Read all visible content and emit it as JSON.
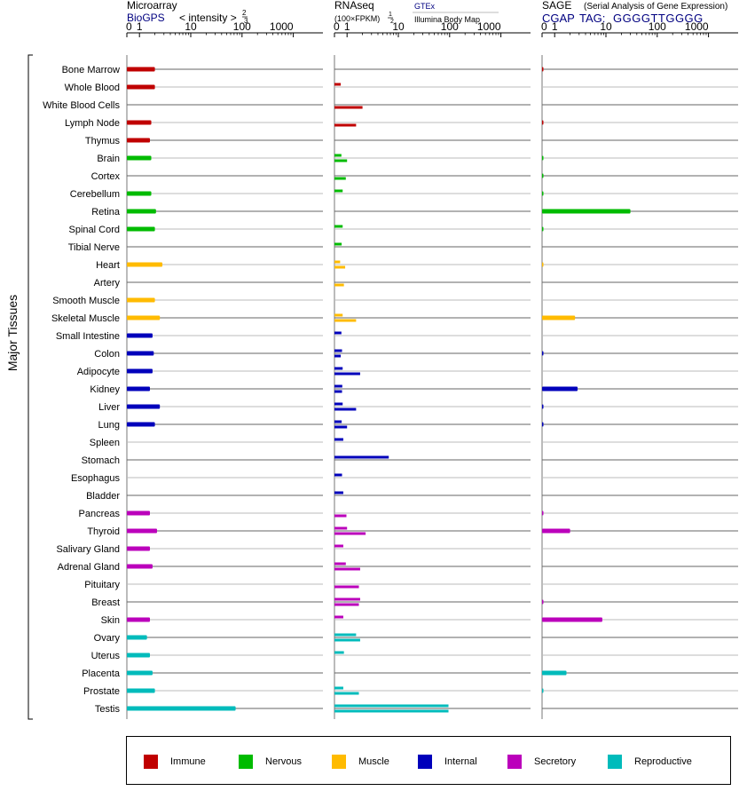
{
  "chart_data": {
    "type": "bar",
    "orientation": "horizontal",
    "group_label": "Major Tissues",
    "categories": [
      "Bone Marrow",
      "Whole Blood",
      "White Blood Cells",
      "Lymph Node",
      "Thymus",
      "Brain",
      "Cortex",
      "Cerebellum",
      "Retina",
      "Spinal Cord",
      "Tibial Nerve",
      "Heart",
      "Artery",
      "Smooth Muscle",
      "Skeletal Muscle",
      "Small Intestine",
      "Colon",
      "Adipocyte",
      "Kidney",
      "Liver",
      "Lung",
      "Spleen",
      "Stomach",
      "Esophagus",
      "Bladder",
      "Pancreas",
      "Thyroid",
      "Salivary Gland",
      "Adrenal Gland",
      "Pituitary",
      "Breast",
      "Skin",
      "Ovary",
      "Uterus",
      "Placenta",
      "Prostate",
      "Testis"
    ],
    "category_group": [
      "immune",
      "immune",
      "immune",
      "immune",
      "immune",
      "nervous",
      "nervous",
      "nervous",
      "nervous",
      "nervous",
      "nervous",
      "muscle",
      "muscle",
      "muscle",
      "muscle",
      "internal",
      "internal",
      "internal",
      "internal",
      "internal",
      "internal",
      "internal",
      "internal",
      "internal",
      "internal",
      "secretory",
      "secretory",
      "secretory",
      "secretory",
      "secretory",
      "secretory",
      "secretory",
      "reproductive",
      "reproductive",
      "reproductive",
      "reproductive",
      "reproductive"
    ],
    "panels": [
      {
        "title": "Microarray",
        "source": "BioGPS",
        "subtitle": "< intensity >",
        "exponent_num": "2",
        "exponent_den": "3",
        "ticks": [
          "0",
          "1",
          "10",
          "100",
          "1000"
        ],
        "xlim": [
          0,
          1000
        ],
        "series": [
          {
            "values": [
              2.0,
              2.0,
              null,
              1.7,
              1.6,
              1.7,
              null,
              1.7,
              2.1,
              2.0,
              null,
              2.8,
              null,
              2.0,
              2.5,
              1.8,
              1.9,
              1.8,
              1.6,
              2.5,
              2.0,
              null,
              null,
              null,
              null,
              1.6,
              2.2,
              1.6,
              1.8,
              null,
              null,
              1.6,
              1.4,
              1.6,
              1.8,
              2.0,
              75
            ]
          }
        ]
      },
      {
        "title": "RNAseq",
        "subtitle": "(100×FPKM)",
        "exponent_num": "1",
        "exponent_den": "2",
        "source": "GTEx",
        "source2": "Illumina Body Map",
        "ticks": [
          "0",
          "1",
          "10",
          "100",
          "1000"
        ],
        "xlim": [
          0,
          1000
        ],
        "series": [
          {
            "name": "GTEx",
            "values": [
              null,
              0.5,
              null,
              null,
              null,
              0.55,
              null,
              0.65,
              null,
              0.65,
              0.57,
              0.45,
              null,
              null,
              0.65,
              0.55,
              0.6,
              0.65,
              0.62,
              0.65,
              0.57,
              0.7,
              6.5,
              0.6,
              0.7,
              null,
              1.0,
              0.7,
              0.9,
              null,
              1.8,
              0.7,
              1.5,
              0.75,
              null,
              0.7,
              95
            ]
          },
          {
            "name": "Illumina Body Map",
            "values": [
              null,
              null,
              2.0,
              1.5,
              null,
              1.0,
              0.9,
              null,
              null,
              null,
              null,
              0.85,
              0.75,
              null,
              1.5,
              null,
              0.5,
              1.8,
              0.6,
              1.5,
              1.0,
              null,
              null,
              null,
              null,
              0.95,
              2.3,
              null,
              1.8,
              1.7,
              1.7,
              null,
              1.8,
              null,
              null,
              1.7,
              95
            ]
          }
        ]
      },
      {
        "title": "SAGE",
        "title_note": "(Serial Analysis of Gene Expression)",
        "source": "CGAP",
        "tag_label": "TAG:",
        "tag": "GGGGTTGGGG",
        "ticks": [
          "0",
          "1",
          "10",
          "100",
          "1000"
        ],
        "xlim": [
          0,
          1000
        ],
        "series": [
          {
            "values": [
              0.02,
              null,
              null,
              0.02,
              null,
              0.02,
              0.02,
              0.02,
              30,
              0.02,
              null,
              0.01,
              null,
              null,
              2.5,
              null,
              0.02,
              null,
              2.8,
              0.02,
              0.02,
              null,
              null,
              null,
              null,
              0.02,
              2.0,
              null,
              null,
              null,
              0.02,
              8.5,
              null,
              null,
              1.7,
              0.02,
              null
            ]
          }
        ]
      }
    ],
    "legend": [
      {
        "key": "immune",
        "label": "Immune",
        "color": "#c00000"
      },
      {
        "key": "nervous",
        "label": "Nervous",
        "color": "#00bb00"
      },
      {
        "key": "muscle",
        "label": "Muscle",
        "color": "#ffbb00"
      },
      {
        "key": "internal",
        "label": "Internal",
        "color": "#0000bb"
      },
      {
        "key": "secretory",
        "label": "Secretory",
        "color": "#bb00bb"
      },
      {
        "key": "reproductive",
        "label": "Reproductive",
        "color": "#00bbbb"
      }
    ]
  }
}
